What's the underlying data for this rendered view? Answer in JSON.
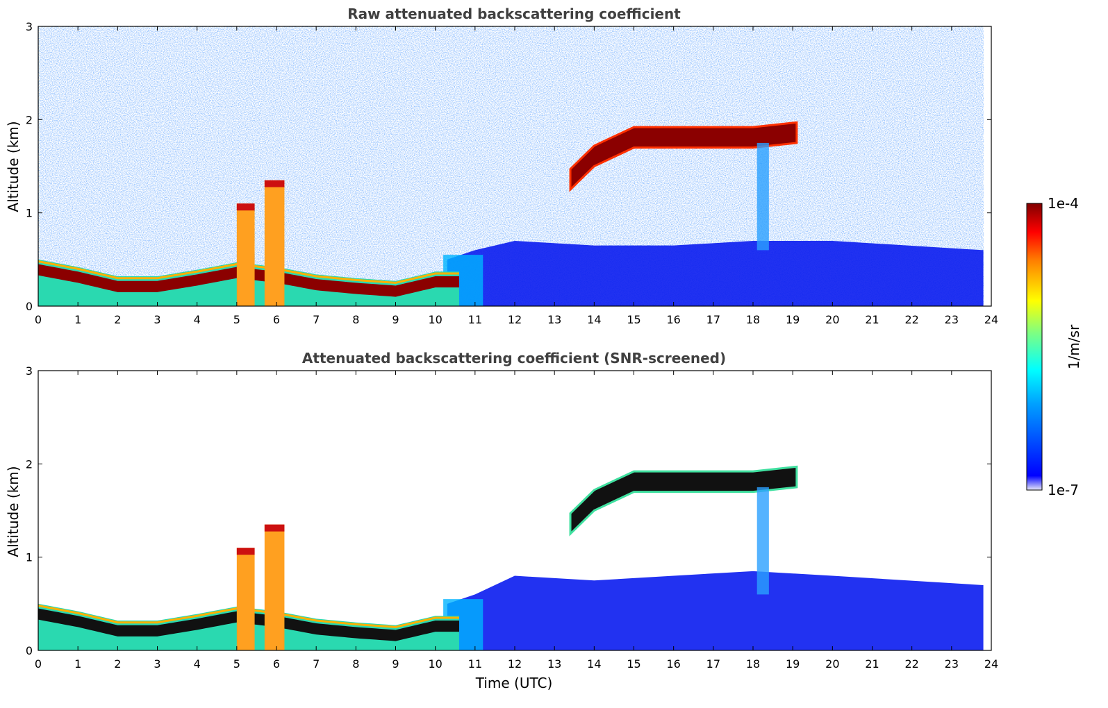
{
  "chart_data": [
    {
      "type": "heatmap",
      "title": "Raw attenuated backscattering coefficient",
      "xlabel": "",
      "ylabel": "Altitude (km)",
      "xlim": [
        0,
        24
      ],
      "ylim": [
        0,
        3
      ],
      "xticks": [
        0,
        1,
        2,
        3,
        4,
        5,
        6,
        7,
        8,
        9,
        10,
        11,
        12,
        13,
        14,
        15,
        16,
        17,
        18,
        19,
        20,
        21,
        22,
        23,
        24
      ],
      "yticks": [
        0,
        1,
        2,
        3
      ],
      "features": {
        "layer_base_km": [
          [
            0,
            0.38
          ],
          [
            1,
            0.3
          ],
          [
            2,
            0.2
          ],
          [
            3,
            0.2
          ],
          [
            4,
            0.27
          ],
          [
            5,
            0.35
          ],
          [
            6,
            0.3
          ],
          [
            7,
            0.22
          ],
          [
            8,
            0.18
          ],
          [
            9,
            0.15
          ],
          [
            10,
            0.25
          ]
        ],
        "convective_columns": [
          {
            "t0": 5.0,
            "t1": 5.45,
            "top": 1.1
          },
          {
            "t0": 5.7,
            "t1": 6.2,
            "top": 1.35
          }
        ],
        "elevated_layer_km": [
          [
            13.4,
            1.35
          ],
          [
            14,
            1.6
          ],
          [
            15,
            1.8
          ],
          [
            16,
            1.8
          ],
          [
            17,
            1.8
          ],
          [
            18,
            1.8
          ],
          [
            19.1,
            1.85
          ]
        ],
        "boundary_layer_top_km": [
          [
            10.3,
            0.5
          ],
          [
            11,
            0.6
          ],
          [
            12,
            0.7
          ],
          [
            14,
            0.65
          ],
          [
            16,
            0.65
          ],
          [
            18,
            0.7
          ],
          [
            20,
            0.7
          ],
          [
            23.8,
            0.6
          ]
        ],
        "data_end_hour": 23.8
      }
    },
    {
      "type": "heatmap",
      "title": "Attenuated backscattering coefficient (SNR-screened)",
      "xlabel": "Time (UTC)",
      "ylabel": "Altitude (km)",
      "xlim": [
        0,
        24
      ],
      "ylim": [
        0,
        3
      ],
      "xticks": [
        0,
        1,
        2,
        3,
        4,
        5,
        6,
        7,
        8,
        9,
        10,
        11,
        12,
        13,
        14,
        15,
        16,
        17,
        18,
        19,
        20,
        21,
        22,
        23,
        24
      ],
      "yticks": [
        0,
        1,
        2,
        3
      ],
      "features": {
        "layer_base_km": [
          [
            0,
            0.38
          ],
          [
            1,
            0.3
          ],
          [
            2,
            0.2
          ],
          [
            3,
            0.2
          ],
          [
            4,
            0.27
          ],
          [
            5,
            0.35
          ],
          [
            6,
            0.3
          ],
          [
            7,
            0.22
          ],
          [
            8,
            0.18
          ],
          [
            9,
            0.15
          ],
          [
            10,
            0.25
          ]
        ],
        "convective_columns": [
          {
            "t0": 5.0,
            "t1": 5.45,
            "top": 1.1
          },
          {
            "t0": 5.7,
            "t1": 6.2,
            "top": 1.35
          }
        ],
        "elevated_layer_km": [
          [
            13.4,
            1.35
          ],
          [
            14,
            1.6
          ],
          [
            15,
            1.8
          ],
          [
            16,
            1.8
          ],
          [
            17,
            1.8
          ],
          [
            18,
            1.8
          ],
          [
            19.1,
            1.85
          ]
        ],
        "boundary_layer_top_km": [
          [
            10.3,
            0.5
          ],
          [
            11,
            0.6
          ],
          [
            12,
            0.8
          ],
          [
            14,
            0.75
          ],
          [
            16,
            0.8
          ],
          [
            18,
            0.85
          ],
          [
            20,
            0.8
          ],
          [
            23.8,
            0.7
          ]
        ],
        "data_end_hour": 23.8
      }
    }
  ],
  "colorbar": {
    "label": "1/m/sr",
    "max_label": "1e-4",
    "min_label": "1e-7",
    "colormap": "jet",
    "colors": [
      "#e8e8f8",
      "#0000ff",
      "#00a0ff",
      "#00ffff",
      "#80ff80",
      "#ffff00",
      "#ff8000",
      "#ff0000",
      "#800000"
    ]
  }
}
